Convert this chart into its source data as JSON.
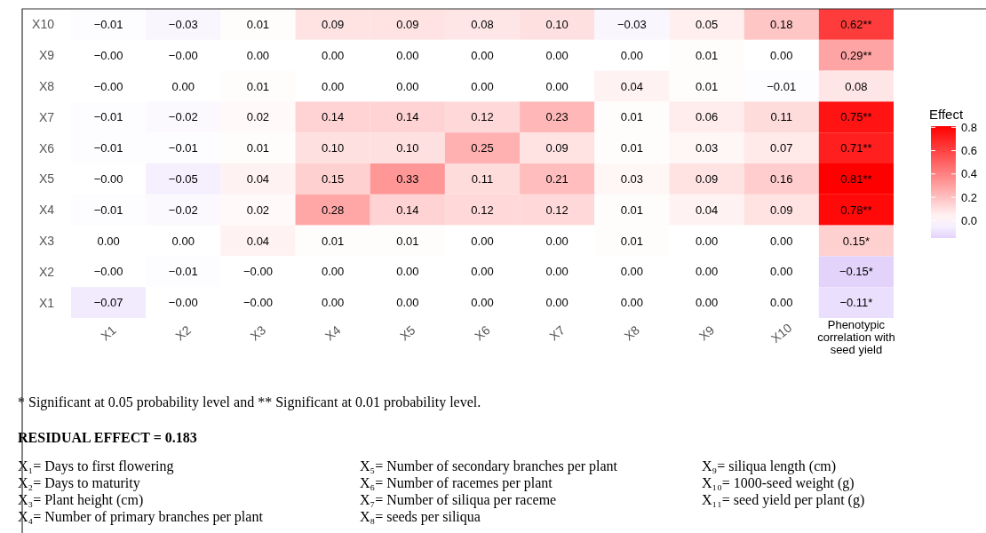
{
  "chart_data": {
    "type": "heatmap",
    "categories": [
      "X1",
      "X2",
      "X3",
      "X4",
      "X5",
      "X6",
      "X7",
      "X8",
      "X9",
      "X10",
      "Phenotypic correlation with seed yield"
    ],
    "y_categories": [
      "X10",
      "X9",
      "X8",
      "X7",
      "X6",
      "X5",
      "X4",
      "X3",
      "X2",
      "X1"
    ],
    "cells": [
      [
        -0.01,
        -0.03,
        0.01,
        0.09,
        0.09,
        0.08,
        0.1,
        -0.03,
        0.05,
        0.18,
        0.62
      ],
      [
        0,
        0,
        0,
        0,
        0,
        0,
        0,
        0,
        0.01,
        0,
        0.29
      ],
      [
        0,
        0,
        0.01,
        0,
        0,
        0,
        0,
        0.04,
        0.01,
        -0.01,
        0.08
      ],
      [
        -0.01,
        -0.02,
        0.02,
        0.14,
        0.14,
        0.12,
        0.23,
        0.01,
        0.06,
        0.11,
        0.75
      ],
      [
        -0.01,
        -0.01,
        0.01,
        0.1,
        0.1,
        0.25,
        0.09,
        0.01,
        0.03,
        0.07,
        0.71
      ],
      [
        0,
        -0.05,
        0.04,
        0.15,
        0.33,
        0.11,
        0.21,
        0.03,
        0.09,
        0.16,
        0.81
      ],
      [
        -0.01,
        -0.02,
        0.02,
        0.28,
        0.14,
        0.12,
        0.12,
        0.01,
        0.04,
        0.09,
        0.78
      ],
      [
        0,
        0,
        0.04,
        0.01,
        0.01,
        0,
        0,
        0.01,
        0,
        0,
        0.15
      ],
      [
        0,
        -0.01,
        0,
        0,
        0,
        0,
        0,
        0,
        0,
        0,
        -0.15
      ],
      [
        -0.07,
        0,
        0,
        0,
        0,
        0,
        0,
        0,
        0,
        0,
        -0.11
      ]
    ],
    "cell_labels": [
      [
        "−0.01",
        "−0.03",
        "0.01",
        "0.09",
        "0.09",
        "0.08",
        "0.10",
        "−0.03",
        "0.05",
        "0.18",
        "0.62**"
      ],
      [
        "−0.00",
        "−0.00",
        "0.00",
        "0.00",
        "0.00",
        "0.00",
        "0.00",
        "0.00",
        "0.01",
        "0.00",
        "0.29**"
      ],
      [
        "−0.00",
        "0.00",
        "0.01",
        "0.00",
        "0.00",
        "0.00",
        "0.00",
        "0.04",
        "0.01",
        "−0.01",
        "0.08"
      ],
      [
        "−0.01",
        "−0.02",
        "0.02",
        "0.14",
        "0.14",
        "0.12",
        "0.23",
        "0.01",
        "0.06",
        "0.11",
        "0.75**"
      ],
      [
        "−0.01",
        "−0.01",
        "0.01",
        "0.10",
        "0.10",
        "0.25",
        "0.09",
        "0.01",
        "0.03",
        "0.07",
        "0.71**"
      ],
      [
        "−0.00",
        "−0.05",
        "0.04",
        "0.15",
        "0.33",
        "0.11",
        "0.21",
        "0.03",
        "0.09",
        "0.16",
        "0.81**"
      ],
      [
        "−0.01",
        "−0.02",
        "0.02",
        "0.28",
        "0.14",
        "0.12",
        "0.12",
        "0.01",
        "0.04",
        "0.09",
        "0.78**"
      ],
      [
        "0.00",
        "0.00",
        "0.04",
        "0.01",
        "0.01",
        "0.00",
        "0.00",
        "0.01",
        "0.00",
        "0.00",
        "0.15*"
      ],
      [
        "−0.00",
        "−0.01",
        "−0.00",
        "0.00",
        "0.00",
        "0.00",
        "0.00",
        "0.00",
        "0.00",
        "0.00",
        "−0.15*"
      ],
      [
        "−0.07",
        "−0.00",
        "−0.00",
        "0.00",
        "0.00",
        "0.00",
        "0.00",
        "0.00",
        "0.00",
        "0.00",
        "−0.11*"
      ]
    ],
    "clabel": "Effect",
    "clim": [
      -0.15,
      0.81
    ],
    "cticks": [
      {
        "value": 0,
        "label": "0.0"
      },
      {
        "value": 0.2,
        "label": "0.2"
      },
      {
        "value": 0.4,
        "label": "0.4"
      },
      {
        "value": 0.6,
        "label": "0.6"
      },
      {
        "value": 0.8,
        "label": "0.8"
      }
    ],
    "annotations": [
      "* Significant at 0.05 probability level and ** Significant at 0.01 probability level.",
      "RESIDUAL EFFECT = 0.183",
      "X₁= Days to first flowering",
      "X₂= Days to maturity",
      "X₃= Plant height (cm)",
      "X₄= Number of primary branches per plant",
      "X₅= Number of secondary branches per plant",
      "X₆= Number of racemes per plant",
      "X₇= Number of siliqua per raceme",
      "X₈= seeds per siliqua",
      "X₉= siliqua length (cm)",
      "X₁₀= 1000-seed weight (g)",
      "X₁₁= seed yield per plant (g)"
    ]
  }
}
